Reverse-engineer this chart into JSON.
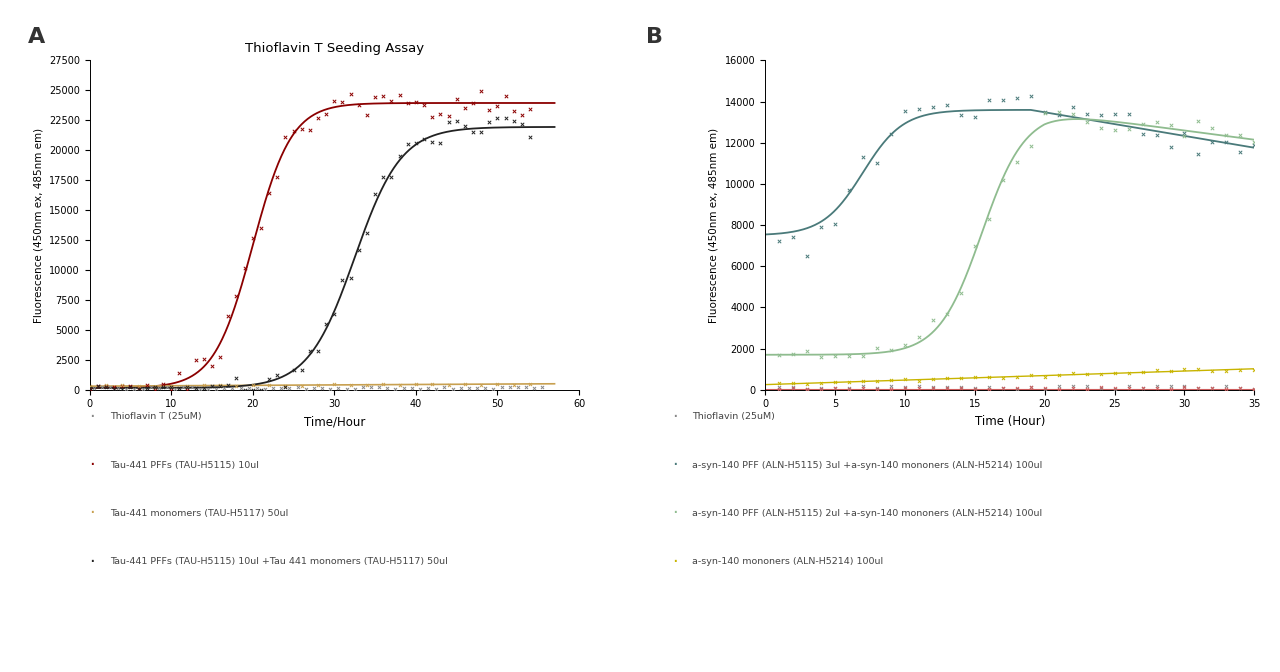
{
  "panel_A": {
    "title": "Thioflavin T Seeding Assay",
    "xlabel": "Time/Hour",
    "ylabel": "Fluorescence (450nm ex, 485nm em)",
    "xlim": [
      0,
      60
    ],
    "ylim": [
      0,
      27500
    ],
    "yticks": [
      0,
      2500,
      5000,
      7500,
      10000,
      12500,
      15000,
      17500,
      20000,
      22500,
      25000,
      27500
    ],
    "xticks": [
      0,
      10,
      20,
      30,
      40,
      50,
      60
    ],
    "legend_items": [
      {
        "label": "Thioflavin T (25uM)",
        "color": "#888888"
      },
      {
        "label": "Tau-441 PFFs (TAU-H5115) 10ul",
        "color": "#8B0000"
      },
      {
        "label": "Tau-441 monomers (TAU-H5117) 50ul",
        "color": "#C8A050"
      },
      {
        "label": "Tau-441 PFFs (TAU-H5115) 10ul +Tau 441 monomers (TAU-H5117) 50ul",
        "color": "#222222"
      }
    ]
  },
  "panel_B": {
    "title": "",
    "xlabel": "Time (Hour)",
    "ylabel": "Fluorescence (450nm ex, 485nm em)",
    "xlim": [
      0,
      35
    ],
    "ylim": [
      0,
      16000
    ],
    "yticks": [
      0,
      2000,
      4000,
      6000,
      8000,
      10000,
      12000,
      14000,
      16000
    ],
    "xticks": [
      0,
      5,
      10,
      15,
      20,
      25,
      30,
      35
    ],
    "legend_items": [
      {
        "label": "Thioflavin (25uM)",
        "color": "#888888"
      },
      {
        "label": "a-syn-140 PFF (ALN-H5115) 3ul +a-syn-140 mononers (ALN-H5214) 100ul",
        "color": "#4A7A7A"
      },
      {
        "label": "a-syn-140 PFF (ALN-H5115) 2ul +a-syn-140 mononers (ALN-H5214) 100ul",
        "color": "#8FBC8F"
      },
      {
        "label": "a-syn-140 mononers (ALN-H5214) 100ul",
        "color": "#C8B400"
      }
    ]
  },
  "background_color": "#ffffff",
  "label_A": "A",
  "label_B": "B"
}
